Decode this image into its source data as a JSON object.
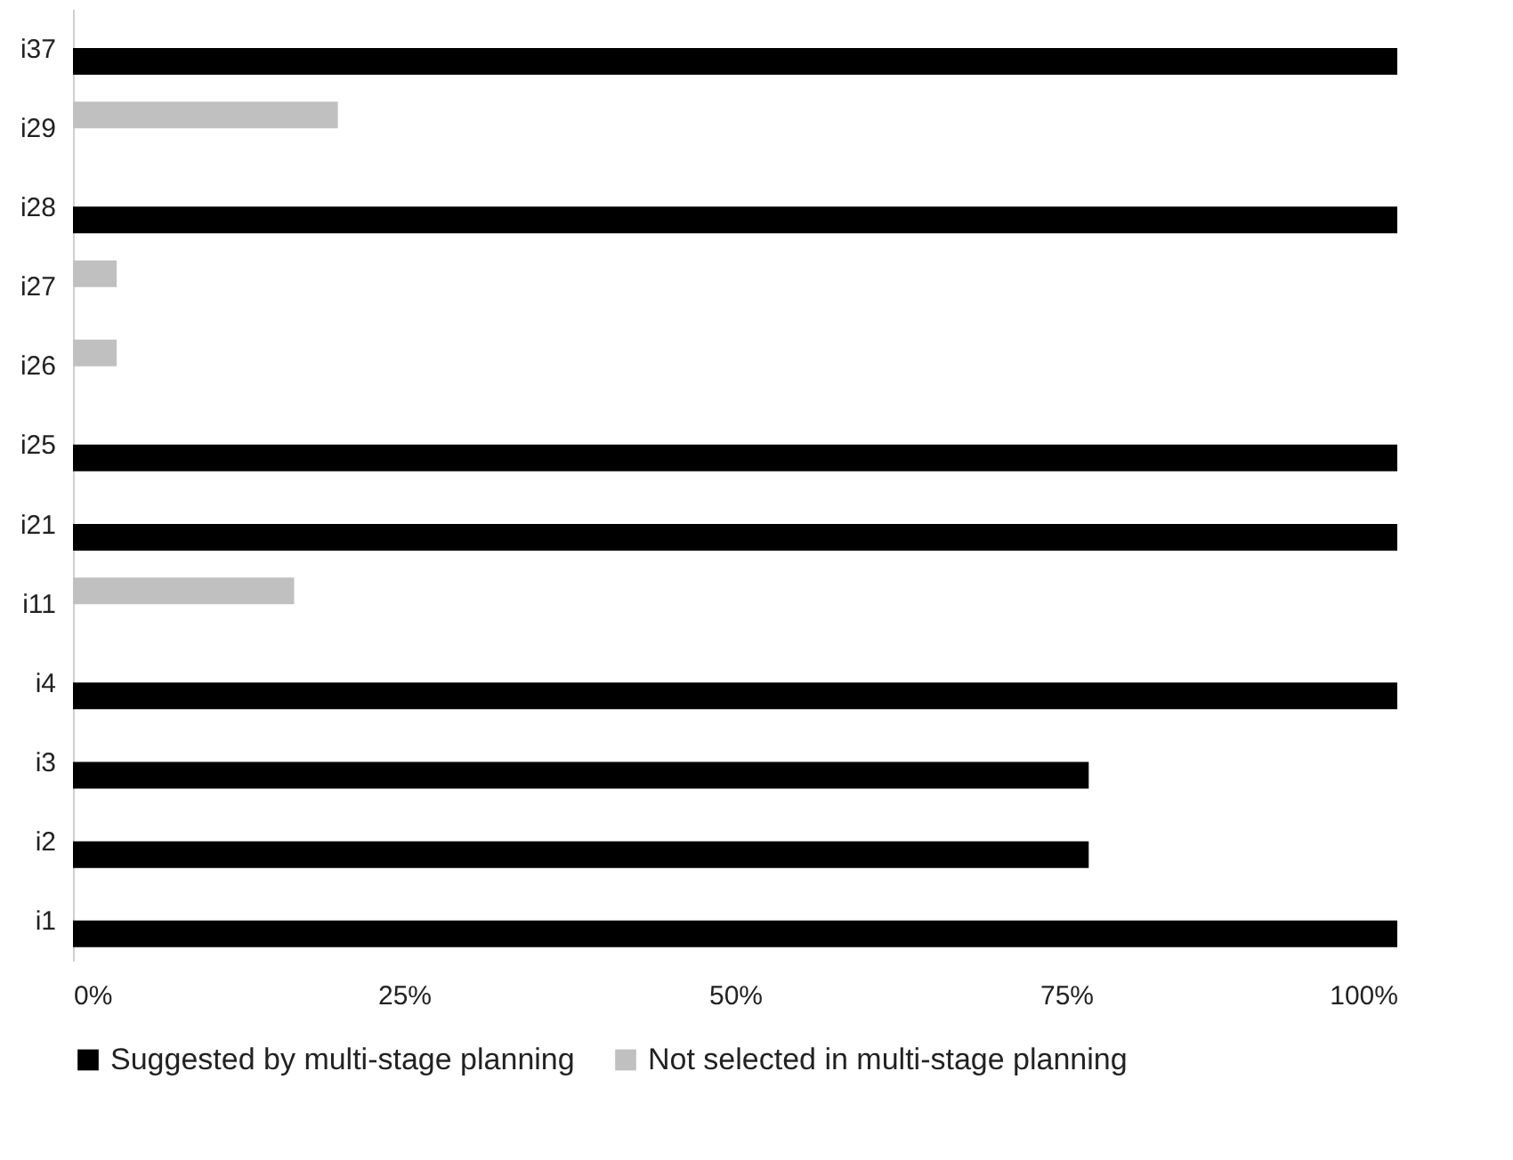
{
  "chart_data": {
    "type": "bar",
    "orientation": "horizontal",
    "categories": [
      "i37",
      "i29",
      "i28",
      "i27",
      "i26",
      "i25",
      "i21",
      "i11",
      "i4",
      "i3",
      "i2",
      "i1"
    ],
    "series": [
      {
        "name": "Suggested by multi-stage planning",
        "color": "#000000",
        "values": [
          100,
          null,
          100,
          null,
          null,
          100,
          100,
          null,
          100,
          76.7,
          76.7,
          100
        ]
      },
      {
        "name": "Not selected in multi-stage planning",
        "color": "#c0c0c0",
        "values": [
          null,
          20,
          null,
          3.3,
          3.3,
          null,
          null,
          16.7,
          null,
          null,
          null,
          null
        ]
      }
    ],
    "xlim": [
      0,
      100
    ],
    "xticks": [
      {
        "value": 0,
        "label": "0%"
      },
      {
        "value": 25,
        "label": "25%"
      },
      {
        "value": 50,
        "label": "50%"
      },
      {
        "value": 75,
        "label": "75%"
      },
      {
        "value": 100,
        "label": "100%"
      }
    ],
    "grid": false,
    "legend": "bottom"
  }
}
